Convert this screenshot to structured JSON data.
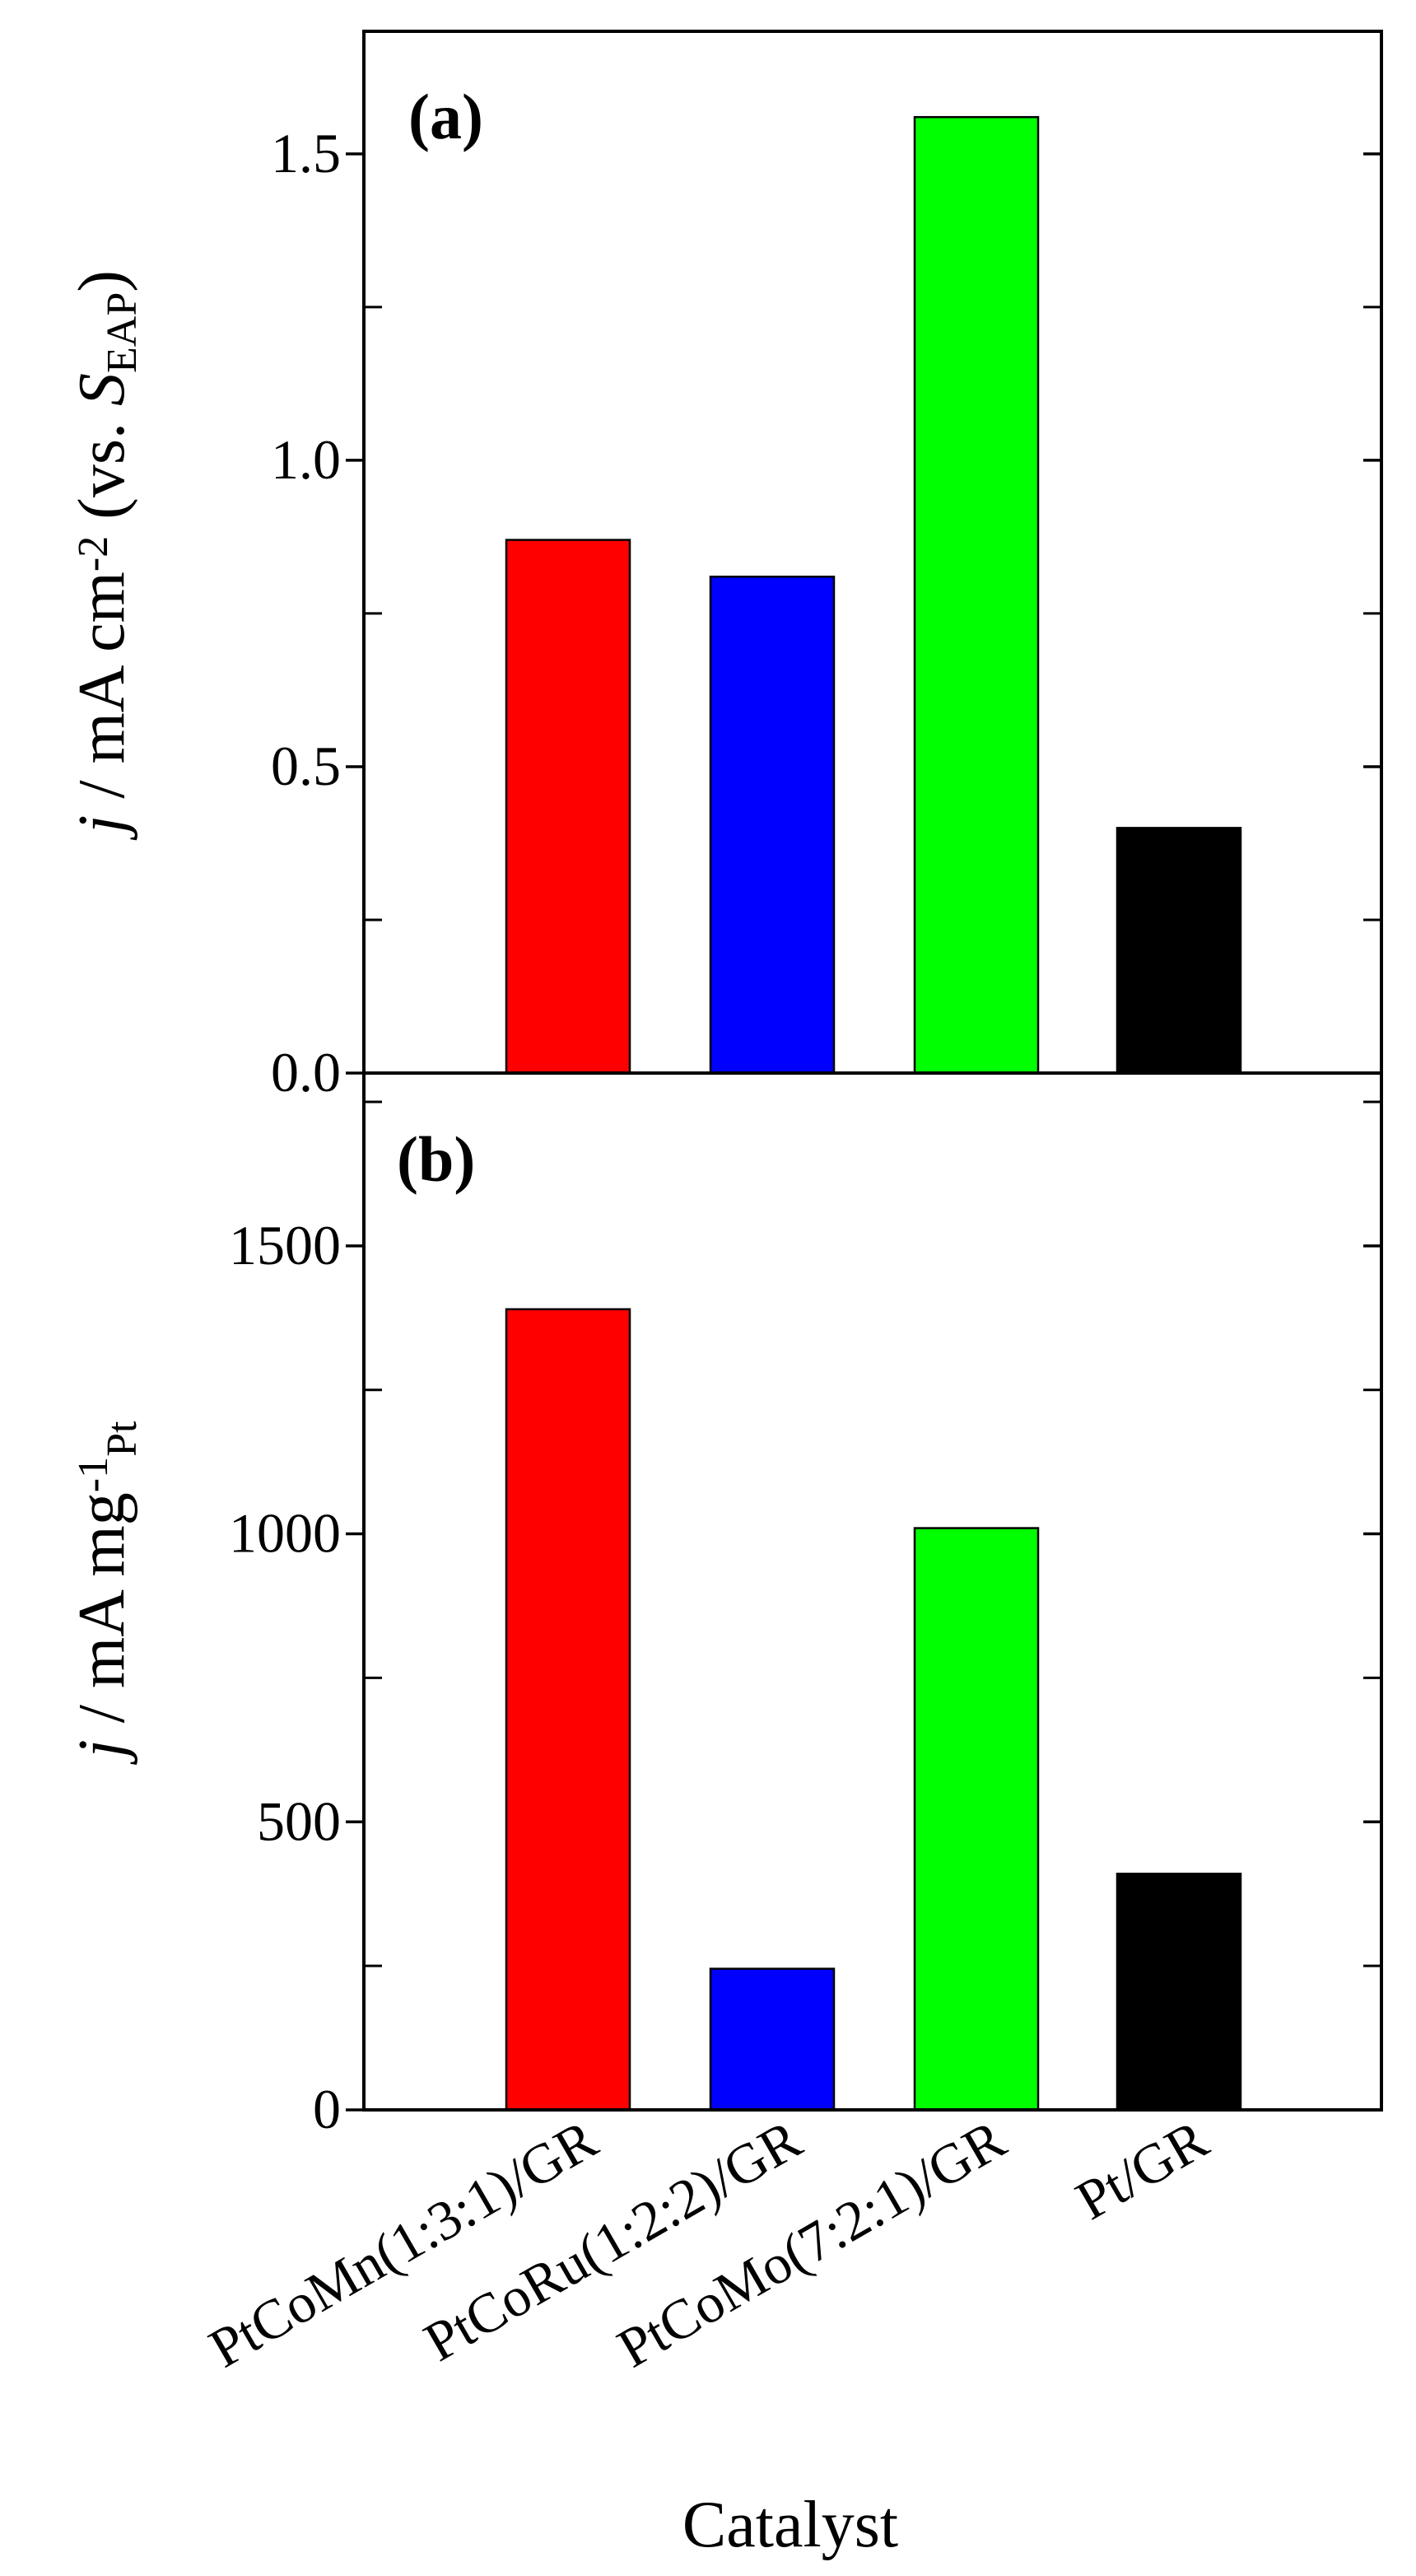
{
  "chart_data": [
    {
      "type": "bar",
      "panel_label": "(a)",
      "ylabel": {
        "main": "j / mA cm",
        "sup": "-2",
        "paren_open": " (vs. ",
        "var": "S",
        "sub": "EAP",
        "paren_close": ")"
      },
      "ylim": [
        0,
        1.7
      ],
      "yticks": [
        0.0,
        0.5,
        1.0,
        1.5
      ],
      "yticklabels": [
        "0.0",
        "0.5",
        "1.0",
        "1.5"
      ],
      "yminor": [
        0.25,
        0.75,
        1.25
      ],
      "categories": [
        "PtCoMn(1:3:1)/GR",
        "PtCoRu(1:2:2)/GR",
        "PtCoMo(7:2:1)/GR",
        "Pt/GR"
      ],
      "values": [
        0.87,
        0.81,
        1.56,
        0.4
      ],
      "colors": [
        "#ff0000",
        "#0000ff",
        "#00ff00",
        "#000000"
      ],
      "grid": false
    },
    {
      "type": "bar",
      "panel_label": "(b)",
      "ylabel": {
        "main": "j / mA mg",
        "sup": "-1",
        "sub": "Pt"
      },
      "ylim": [
        0,
        1800
      ],
      "yticks": [
        0,
        500,
        1000,
        1500
      ],
      "yticklabels": [
        "0",
        "500",
        "1000",
        "1500"
      ],
      "yminor": [
        250,
        750,
        1250,
        1750
      ],
      "categories": [
        "PtCoMn(1:3:1)/GR",
        "PtCoRu(1:2:2)/GR",
        "PtCoMo(7:2:1)/GR",
        "Pt/GR"
      ],
      "values": [
        1390,
        245,
        1010,
        410
      ],
      "colors": [
        "#ff0000",
        "#0000ff",
        "#00ff00",
        "#000000"
      ],
      "xlabel": "Catalyst",
      "grid": false
    }
  ]
}
